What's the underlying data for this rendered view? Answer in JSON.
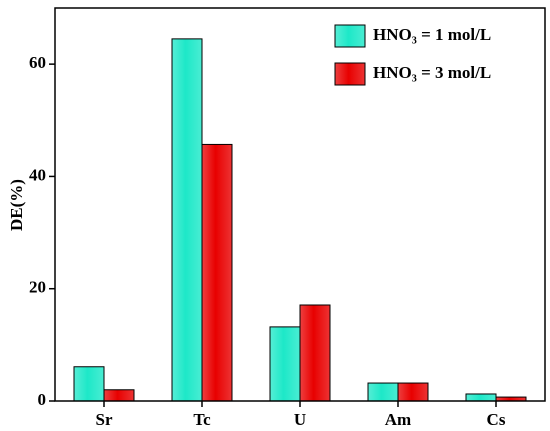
{
  "chart_data": {
    "type": "bar",
    "y_label": "DE(%)",
    "categories": [
      "Sr",
      "Tc",
      "U",
      "Am",
      "Cs"
    ],
    "series": [
      {
        "name": "HNO₃ = 1 mol/L",
        "color": "#1de8c8",
        "values": [
          6.1,
          64.5,
          13.2,
          3.2,
          1.25
        ]
      },
      {
        "name": "HNO₃ = 3 mol/L",
        "color": "#e80000",
        "values": [
          2.0,
          45.7,
          17.1,
          3.2,
          0.7
        ]
      }
    ],
    "ylim": [
      0,
      70
    ],
    "yticks": [
      0,
      20,
      40,
      60
    ],
    "legend": "top-right"
  }
}
